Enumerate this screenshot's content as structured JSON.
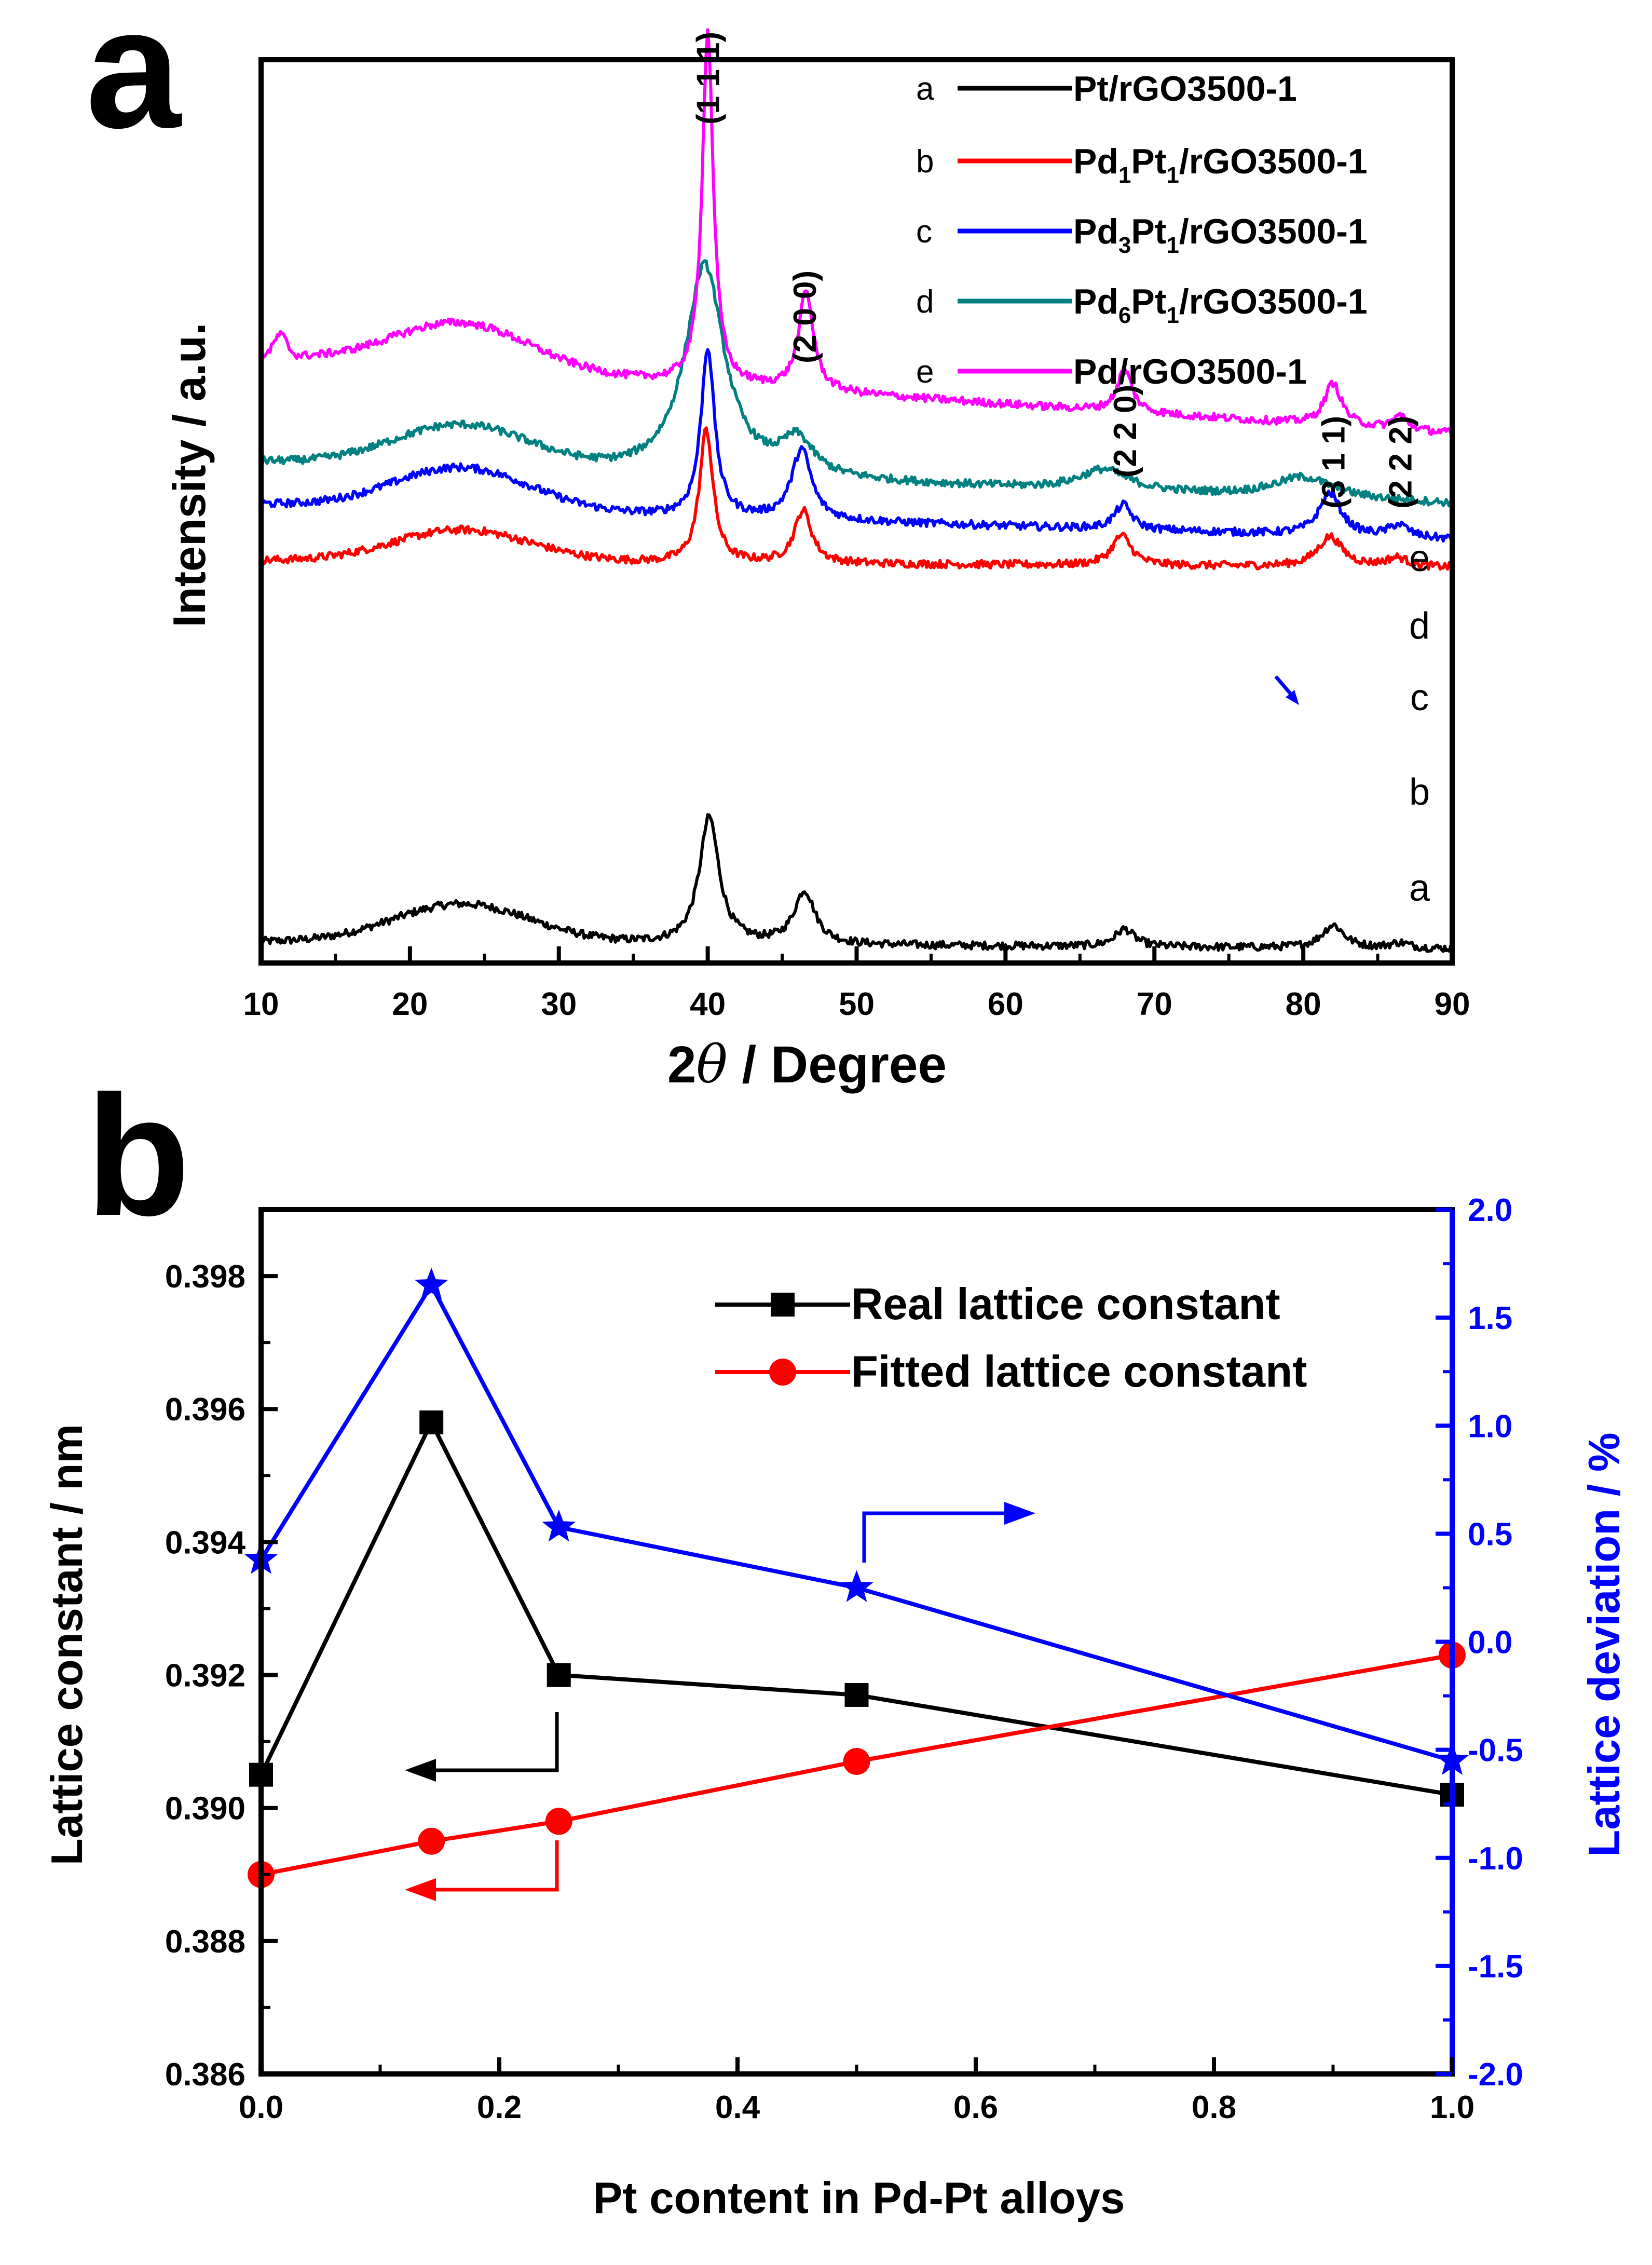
{
  "chart_data": [
    {
      "panel": "a",
      "type": "line",
      "xlabel_prefix": "2",
      "xlabel_symbol": "θ",
      "xlabel_suffix": " / Degree",
      "ylabel": "Intensity / a.u.",
      "xlim": [
        10,
        90
      ],
      "xticks": [
        10,
        20,
        30,
        40,
        50,
        60,
        70,
        80,
        90
      ],
      "y_ticks_shown": false,
      "legend": [
        {
          "key": "a",
          "label": "Pt/rGO3500-1",
          "color": "#000000"
        },
        {
          "key": "b",
          "label": "Pd1Pt1/rGO3500-1",
          "color": "#ff0000",
          "parts": [
            "Pd",
            "1",
            "Pt",
            "1",
            "/rGO3500-1"
          ]
        },
        {
          "key": "c",
          "label": "Pd3Pt1/rGO3500-1",
          "color": "#0000ff",
          "parts": [
            "Pd",
            "3",
            "Pt",
            "1",
            "/rGO3500-1"
          ]
        },
        {
          "key": "d",
          "label": "Pd6Pt1/rGO3500-1",
          "color": "#008080",
          "parts": [
            "Pd",
            "6",
            "Pt",
            "1",
            "/rGO3500-1"
          ]
        },
        {
          "key": "e",
          "label": "Pd/rGO3500-1",
          "color": "#ff00ff"
        }
      ],
      "curve_labels": [
        "a",
        "b",
        "c",
        "d",
        "e"
      ],
      "peak_labels": [
        {
          "label": "(1 1 1)",
          "x": 40
        },
        {
          "label": "(2 0 0)",
          "x": 46.5
        },
        {
          "label": "(2 2 0)",
          "x": 68
        },
        {
          "label": "(3 1 1)",
          "x": 82
        },
        {
          "label": "(2 2 2)",
          "x": 86.5
        }
      ],
      "series": [
        {
          "name": "a",
          "offset": 0.06,
          "end": 0.04,
          "hump": 0.11,
          "peaks": [
            [
              40.1,
              0.36,
              0.8
            ],
            [
              46.5,
              0.15,
              0.85
            ],
            [
              68,
              0.05,
              0.8
            ],
            [
              82,
              0.065,
              0.9
            ],
            [
              86.5,
              0.015,
              0.8
            ]
          ]
        },
        {
          "name": "b",
          "offset": 1.14,
          "end": 1.12,
          "hump": 0.09,
          "peaks": [
            [
              39.9,
              0.38,
              0.55
            ],
            [
              46.4,
              0.15,
              0.7
            ],
            [
              67.8,
              0.085,
              0.8
            ],
            [
              81.8,
              0.085,
              1.0
            ],
            [
              86.3,
              0.025,
              0.9
            ]
          ]
        },
        {
          "name": "c",
          "offset": 1.3,
          "end": 1.2,
          "hump": 0.12,
          "peaks": [
            [
              40,
              0.48,
              0.55
            ],
            [
              46.3,
              0.2,
              0.8
            ],
            [
              67.9,
              0.07,
              0.7
            ],
            [
              81.8,
              0.12,
              0.9
            ],
            [
              86.4,
              0.035,
              0.8
            ]
          ]
        },
        {
          "name": "d",
          "offset": 1.42,
          "end": 1.3,
          "hump": 0.12,
          "peaks": [
            [
              39.8,
              0.6,
              1.6
            ],
            [
              46,
              0.1,
              1.3
            ],
            [
              66.6,
              0.06,
              2.0
            ],
            [
              80,
              0.06,
              2.5
            ]
          ]
        },
        {
          "name": "e",
          "offset": 1.72,
          "end": 1.5,
          "hump": 0.13,
          "peaks": [
            [
              40,
              1.0,
              0.45
            ],
            [
              46.6,
              0.28,
              0.6
            ],
            [
              68,
              0.12,
              0.6
            ],
            [
              82,
              0.12,
              0.7
            ],
            [
              86.5,
              0.04,
              0.6
            ]
          ]
        }
      ]
    },
    {
      "panel": "b",
      "type": "line",
      "xlabel": "Pt content in Pd-Pt alloys",
      "ylabel": "Lattice constant / nm",
      "y2label": "Lattice deviation / %",
      "xlim": [
        0,
        1
      ],
      "ylim": [
        0.386,
        0.399
      ],
      "y2lim": [
        -2.0,
        2.0
      ],
      "xticks": [
        0.0,
        0.2,
        0.4,
        0.6,
        0.8,
        1.0
      ],
      "xtick_labels": [
        "0.0",
        "0.2",
        "0.4",
        "0.6",
        "0.8",
        "1.0"
      ],
      "yticks": [
        0.386,
        0.388,
        0.39,
        0.392,
        0.394,
        0.396,
        0.398
      ],
      "ytick_labels": [
        "0.386",
        "0.388",
        "0.390",
        "0.392",
        "0.394",
        "0.396",
        "0.398"
      ],
      "y2ticks": [
        -2.0,
        -1.5,
        -1.0,
        -0.5,
        0.0,
        0.5,
        1.0,
        1.5,
        2.0
      ],
      "y2tick_labels": [
        "-2.0",
        "-1.5",
        "-1.0",
        "-0.5",
        "0.0",
        "0.5",
        "1.0",
        "1.5",
        "2.0"
      ],
      "x": [
        0.0,
        0.143,
        0.25,
        0.5,
        1.0
      ],
      "series": [
        {
          "name": "Real lattice constant",
          "axis": "left",
          "marker": "square",
          "color": "#000000",
          "values": [
            0.3905,
            0.3958,
            0.392,
            0.3917,
            0.3902
          ]
        },
        {
          "name": "Fitted lattice constant",
          "axis": "left",
          "marker": "circle",
          "color": "#ff0000",
          "values": [
            0.389,
            0.3895,
            0.3898,
            0.3907,
            0.3923
          ]
        },
        {
          "name": "Lattice deviation",
          "axis": "right",
          "marker": "star",
          "color": "#0000ff",
          "values": [
            0.38,
            1.65,
            0.53,
            0.25,
            -0.55
          ]
        }
      ],
      "legend": [
        {
          "label": "Real lattice constant",
          "marker": "square",
          "color": "#000000"
        },
        {
          "label": "Fitted lattice constant",
          "marker": "circle",
          "color": "#ff0000"
        }
      ]
    }
  ]
}
